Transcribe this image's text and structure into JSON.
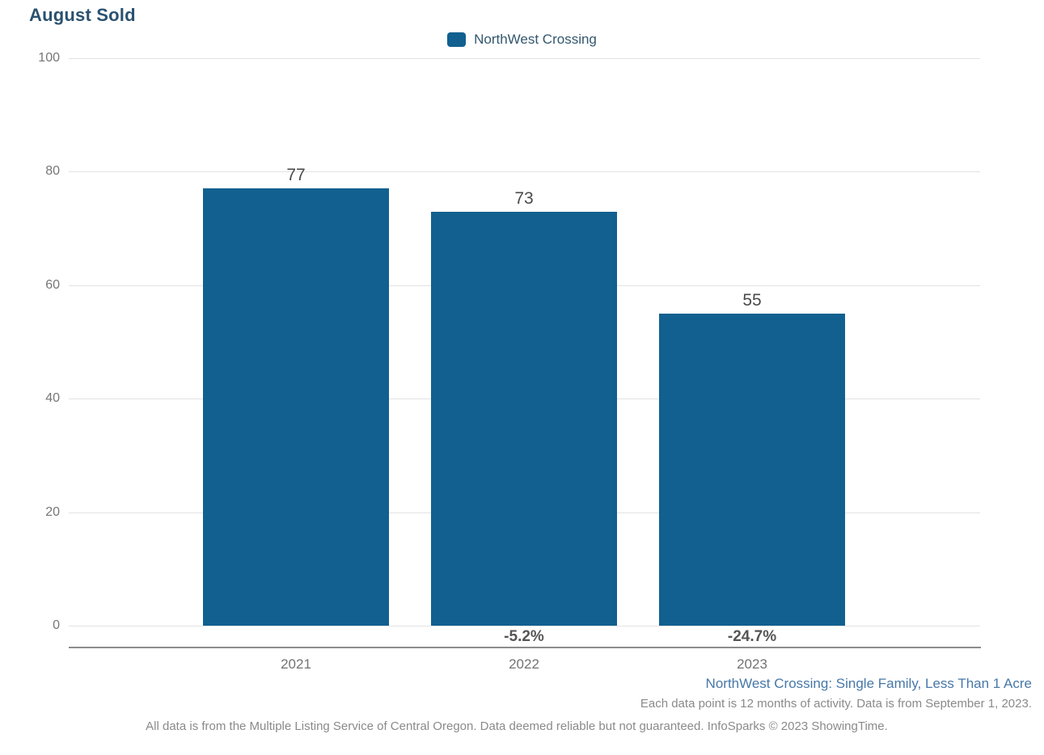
{
  "title": "August Sold",
  "legend": {
    "label": "NorthWest Crossing"
  },
  "colors": {
    "bar": "#11608F",
    "title_text": "#2B5170",
    "legend_text": "#33576E",
    "footer_link": "#4878A8",
    "axis_text": "#767676",
    "gridline": "#e2e2e2"
  },
  "chart_data": {
    "type": "bar",
    "title": "August Sold",
    "categories": [
      "2021",
      "2022",
      "2023"
    ],
    "series": [
      {
        "name": "NorthWest Crossing",
        "values": [
          77,
          73,
          55
        ]
      }
    ],
    "value_labels": [
      "77",
      "73",
      "55"
    ],
    "pct_change_labels": [
      "",
      "-5.2%",
      "-24.7%"
    ],
    "y_ticks": [
      0,
      20,
      40,
      60,
      80,
      100
    ],
    "ylim": [
      0,
      100
    ],
    "xlabel": "",
    "ylabel": "",
    "bar_color": "#11608F",
    "grid": "horizontal",
    "legend_position": "top-center"
  },
  "footer": {
    "segment_label": "NorthWest Crossing: Single Family, Less Than 1 Acre",
    "data_note": "Each data point is 12 months of activity. Data is from September 1, 2023.",
    "disclaimer": "All data is from the Multiple Listing Service of Central Oregon. Data deemed reliable but not guaranteed. InfoSparks © 2023 ShowingTime."
  }
}
